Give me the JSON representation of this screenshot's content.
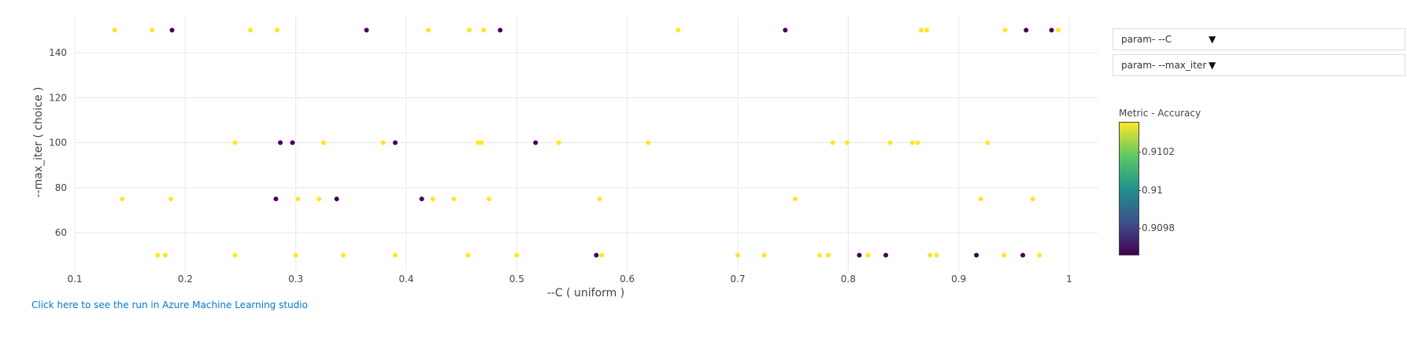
{
  "chart_data": {
    "type": "scatter",
    "xlabel": "--C ( uniform )",
    "ylabel": "--max_iter ( choice )",
    "xlim": [
      0.1,
      1.04
    ],
    "ylim": [
      44,
      153
    ],
    "x_ticks": [
      "0.1",
      "0.2",
      "0.3",
      "0.4",
      "0.5",
      "0.6",
      "0.7",
      "0.8",
      "0.9",
      "1"
    ],
    "y_ticks": [
      "60",
      "80",
      "100",
      "120",
      "140"
    ],
    "grid": true,
    "colorscale": "viridis",
    "colorbar": {
      "title": "Metric - Accuracy",
      "ticks": [
        "0.9102",
        "0.91",
        "0.9098"
      ],
      "high_color": "#fde725",
      "low_color": "#440154"
    },
    "series": [
      {
        "accuracy": "high",
        "color": "#fde725",
        "points": [
          [
            0.136,
            150
          ],
          [
            0.17,
            150
          ],
          [
            0.259,
            150
          ],
          [
            0.283,
            150
          ],
          [
            0.42,
            150
          ],
          [
            0.457,
            150
          ],
          [
            0.47,
            150
          ],
          [
            0.646,
            150
          ],
          [
            0.866,
            150
          ],
          [
            0.871,
            150
          ],
          [
            0.942,
            150
          ],
          [
            0.99,
            150
          ],
          [
            0.245,
            100
          ],
          [
            0.325,
            100
          ],
          [
            0.379,
            100
          ],
          [
            0.465,
            100
          ],
          [
            0.468,
            100
          ],
          [
            0.538,
            100
          ],
          [
            0.619,
            100
          ],
          [
            0.786,
            100
          ],
          [
            0.799,
            100
          ],
          [
            0.838,
            100
          ],
          [
            0.858,
            100
          ],
          [
            0.863,
            100
          ],
          [
            0.926,
            100
          ],
          [
            0.143,
            75
          ],
          [
            0.187,
            75
          ],
          [
            0.302,
            75
          ],
          [
            0.321,
            75
          ],
          [
            0.424,
            75
          ],
          [
            0.443,
            75
          ],
          [
            0.475,
            75
          ],
          [
            0.575,
            75
          ],
          [
            0.752,
            75
          ],
          [
            0.92,
            75
          ],
          [
            0.967,
            75
          ],
          [
            0.175,
            50
          ],
          [
            0.182,
            50
          ],
          [
            0.245,
            50
          ],
          [
            0.3,
            50
          ],
          [
            0.343,
            50
          ],
          [
            0.39,
            50
          ],
          [
            0.456,
            50
          ],
          [
            0.5,
            50
          ],
          [
            0.577,
            50
          ],
          [
            0.7,
            50
          ],
          [
            0.724,
            50
          ],
          [
            0.774,
            50
          ],
          [
            0.782,
            50
          ],
          [
            0.818,
            50
          ],
          [
            0.874,
            50
          ],
          [
            0.88,
            50
          ],
          [
            0.941,
            50
          ],
          [
            0.973,
            50
          ]
        ]
      },
      {
        "accuracy": "low",
        "color": "#440154",
        "points": [
          [
            0.188,
            150
          ],
          [
            0.364,
            150
          ],
          [
            0.485,
            150
          ],
          [
            0.743,
            150
          ],
          [
            0.961,
            150
          ],
          [
            0.984,
            150
          ],
          [
            0.286,
            100
          ],
          [
            0.297,
            100
          ],
          [
            0.39,
            100
          ],
          [
            0.517,
            100
          ],
          [
            0.282,
            75
          ],
          [
            0.337,
            75
          ],
          [
            0.414,
            75
          ],
          [
            0.572,
            50
          ],
          [
            0.81,
            50
          ],
          [
            0.834,
            50
          ],
          [
            0.916,
            50
          ],
          [
            0.958,
            50
          ]
        ]
      }
    ]
  },
  "controls": {
    "dropdown_1": "param- --C",
    "dropdown_2": "param- --max_iter",
    "arrow": "▼"
  },
  "link_text": "Click here to see the run in Azure Machine Learning studio"
}
